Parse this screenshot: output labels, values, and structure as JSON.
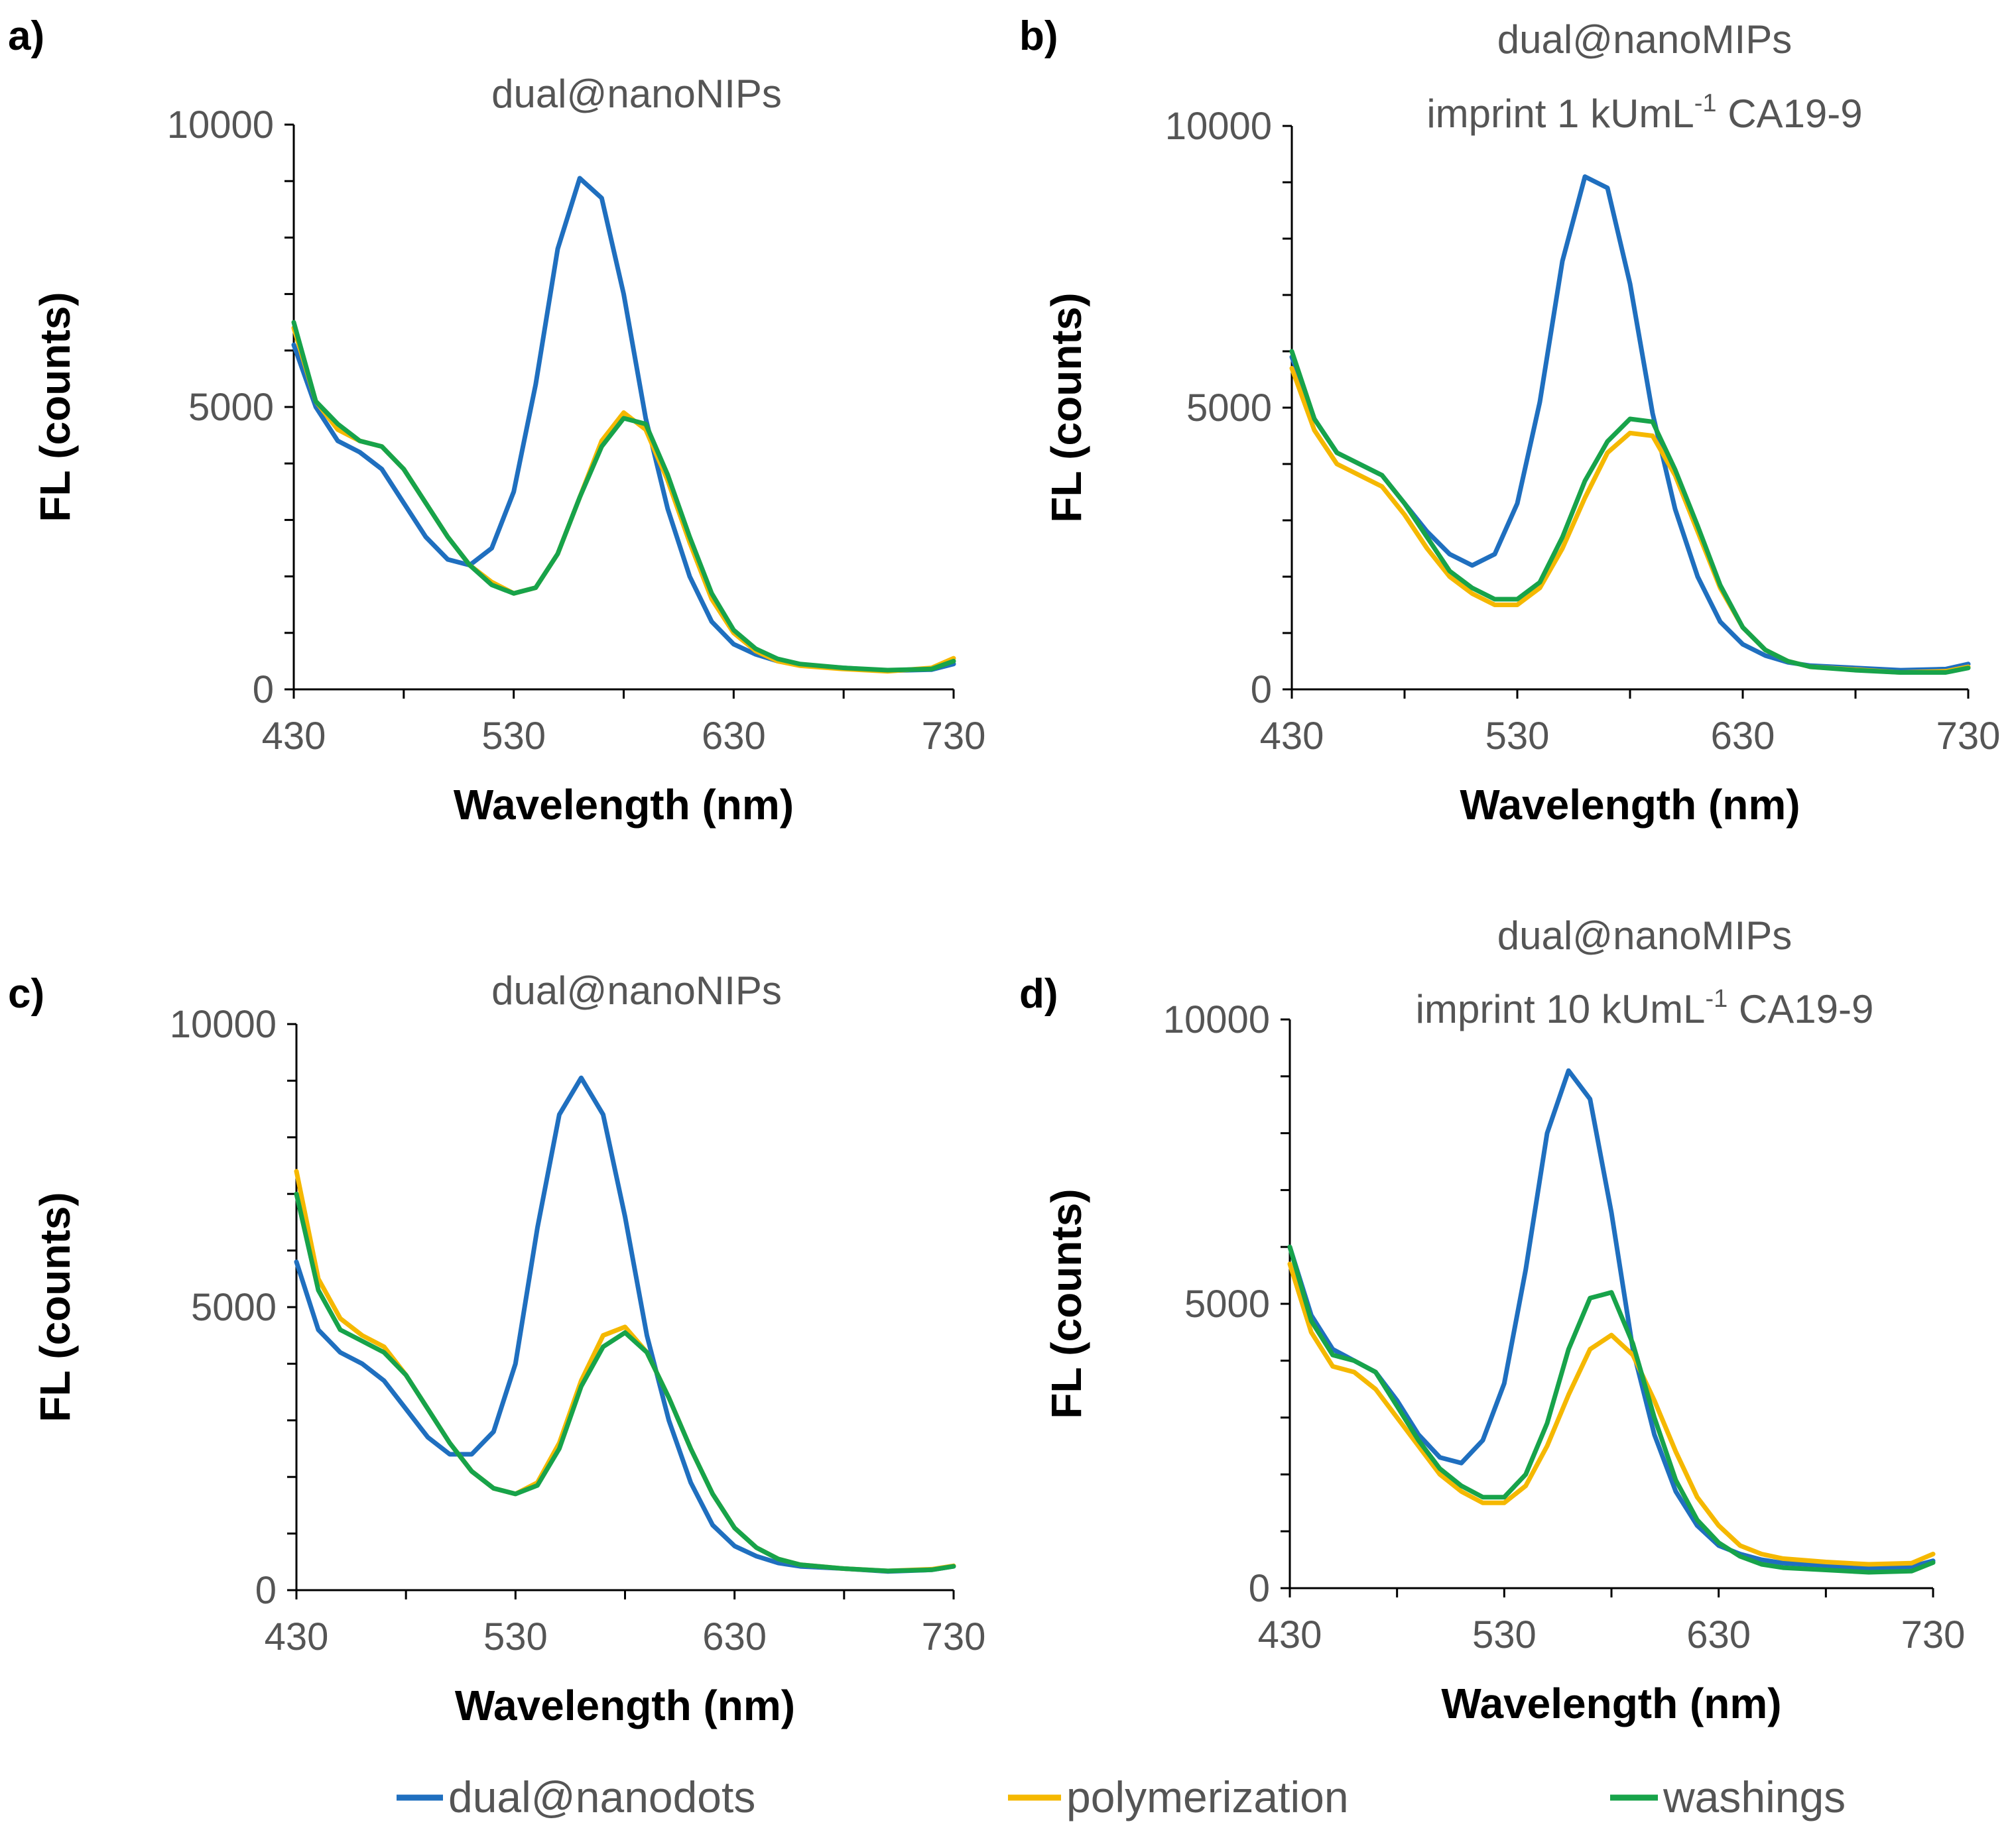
{
  "colors": {
    "dual_nanodots": "#1f6fbf",
    "polymerization": "#f5b800",
    "washings": "#17a34a",
    "axis": "#000000",
    "tick_text": "#555555",
    "title_text": "#555555"
  },
  "legend": {
    "items": [
      {
        "key": "dual_nanodots",
        "label": "dual@nanodots"
      },
      {
        "key": "polymerization",
        "label": "polymerization"
      },
      {
        "key": "washings",
        "label": "washings"
      }
    ]
  },
  "chart_data": [
    {
      "panel": "a)",
      "type": "line",
      "title_lines": [
        "dual@nanoNIPs"
      ],
      "xlabel": "Wavelength (nm)",
      "ylabel": "FL (counts)",
      "xlim": [
        430,
        730
      ],
      "ylim": [
        0,
        10000
      ],
      "xticks": [
        "430",
        "530",
        "630",
        "730"
      ],
      "yticks": [
        "0",
        "5000",
        "10000"
      ],
      "x": [
        430,
        440,
        450,
        460,
        470,
        480,
        490,
        500,
        510,
        520,
        530,
        540,
        550,
        560,
        570,
        580,
        590,
        600,
        610,
        620,
        630,
        640,
        650,
        660,
        680,
        700,
        720,
        730
      ],
      "series": [
        {
          "name": "dual@nanodots",
          "key": "dual_nanodots",
          "values": [
            6100,
            5000,
            4400,
            4200,
            3900,
            3300,
            2700,
            2300,
            2200,
            2500,
            3500,
            5400,
            7800,
            9050,
            8700,
            7000,
            4800,
            3200,
            2000,
            1200,
            800,
            620,
            500,
            430,
            380,
            330,
            350,
            450
          ]
        },
        {
          "name": "polymerization",
          "key": "polymerization",
          "values": [
            6400,
            5100,
            4600,
            4400,
            4300,
            3900,
            3300,
            2700,
            2200,
            1900,
            1700,
            1800,
            2400,
            3400,
            4400,
            4900,
            4600,
            3700,
            2600,
            1600,
            1000,
            680,
            500,
            420,
            360,
            320,
            380,
            550
          ]
        },
        {
          "name": "washings",
          "key": "washings",
          "values": [
            6500,
            5100,
            4700,
            4400,
            4300,
            3900,
            3300,
            2700,
            2200,
            1850,
            1700,
            1800,
            2400,
            3400,
            4300,
            4800,
            4700,
            3800,
            2700,
            1700,
            1050,
            720,
            540,
            450,
            380,
            340,
            360,
            500
          ]
        }
      ]
    },
    {
      "panel": "b)",
      "type": "line",
      "title_lines": [
        "dual@nanoMIPs",
        "imprint 1 kUmL",
        "-1",
        " CA19-9"
      ],
      "xlabel": "Wavelength (nm)",
      "ylabel": "FL (counts)",
      "xlim": [
        430,
        730
      ],
      "ylim": [
        0,
        10000
      ],
      "xticks": [
        "430",
        "530",
        "630",
        "730"
      ],
      "yticks": [
        "0",
        "5000",
        "10000"
      ],
      "x": [
        430,
        440,
        450,
        460,
        470,
        480,
        490,
        500,
        510,
        520,
        530,
        540,
        550,
        560,
        570,
        580,
        590,
        600,
        610,
        620,
        630,
        640,
        650,
        660,
        680,
        700,
        720,
        730
      ],
      "series": [
        {
          "name": "dual@nanodots",
          "key": "dual_nanodots",
          "values": [
            5900,
            4800,
            4200,
            4000,
            3800,
            3300,
            2800,
            2400,
            2200,
            2400,
            3300,
            5100,
            7600,
            9100,
            8900,
            7200,
            4900,
            3200,
            2000,
            1200,
            800,
            600,
            480,
            420,
            380,
            340,
            360,
            450
          ]
        },
        {
          "name": "polymerization",
          "key": "polymerization",
          "values": [
            5700,
            4600,
            4000,
            3800,
            3600,
            3100,
            2500,
            2000,
            1700,
            1500,
            1500,
            1800,
            2500,
            3400,
            4200,
            4550,
            4500,
            3800,
            2800,
            1800,
            1100,
            700,
            500,
            400,
            350,
            300,
            320,
            400
          ]
        },
        {
          "name": "washings",
          "key": "washings",
          "values": [
            6000,
            4800,
            4200,
            4000,
            3800,
            3300,
            2700,
            2100,
            1800,
            1600,
            1600,
            1900,
            2700,
            3700,
            4400,
            4800,
            4750,
            3900,
            2900,
            1850,
            1100,
            700,
            500,
            400,
            340,
            300,
            300,
            380
          ]
        }
      ]
    },
    {
      "panel": "c)",
      "type": "line",
      "title_lines": [
        "dual@nanoNIPs"
      ],
      "xlabel": "Wavelength (nm)",
      "ylabel": "FL (counts)",
      "xlim": [
        430,
        730
      ],
      "ylim": [
        0,
        10000
      ],
      "xticks": [
        "430",
        "530",
        "630",
        "730"
      ],
      "yticks": [
        "0",
        "5000",
        "10000"
      ],
      "x": [
        430,
        440,
        450,
        460,
        470,
        480,
        490,
        500,
        510,
        520,
        530,
        540,
        550,
        560,
        570,
        580,
        590,
        600,
        610,
        620,
        630,
        640,
        650,
        660,
        680,
        700,
        720,
        730
      ],
      "series": [
        {
          "name": "dual@nanodots",
          "key": "dual_nanodots",
          "values": [
            5800,
            4600,
            4200,
            4000,
            3700,
            3200,
            2700,
            2400,
            2400,
            2800,
            4000,
            6400,
            8400,
            9050,
            8400,
            6600,
            4500,
            3000,
            1900,
            1150,
            780,
            600,
            480,
            420,
            380,
            330,
            360,
            420
          ]
        },
        {
          "name": "polymerization",
          "key": "polymerization",
          "values": [
            7400,
            5500,
            4800,
            4500,
            4300,
            3800,
            3200,
            2600,
            2100,
            1800,
            1700,
            1900,
            2600,
            3700,
            4500,
            4650,
            4200,
            3400,
            2500,
            1700,
            1100,
            750,
            550,
            450,
            380,
            340,
            370,
            430
          ]
        },
        {
          "name": "washings",
          "key": "washings",
          "values": [
            7000,
            5300,
            4600,
            4400,
            4200,
            3800,
            3200,
            2600,
            2100,
            1800,
            1700,
            1850,
            2500,
            3600,
            4300,
            4550,
            4200,
            3400,
            2500,
            1700,
            1100,
            750,
            550,
            450,
            380,
            340,
            360,
            420
          ]
        }
      ]
    },
    {
      "panel": "d)",
      "type": "line",
      "title_lines": [
        "dual@nanoMIPs",
        "imprint 10 kUmL",
        "-1",
        " CA19-9"
      ],
      "xlabel": "Wavelength (nm)",
      "ylabel": "FL (counts)",
      "xlim": [
        430,
        730
      ],
      "ylim": [
        0,
        10000
      ],
      "xticks": [
        "430",
        "530",
        "630",
        "730"
      ],
      "yticks": [
        "0",
        "5000",
        "10000"
      ],
      "x": [
        430,
        440,
        450,
        460,
        470,
        480,
        490,
        500,
        510,
        520,
        530,
        540,
        550,
        560,
        570,
        580,
        590,
        600,
        610,
        620,
        630,
        640,
        650,
        660,
        680,
        700,
        720,
        730
      ],
      "series": [
        {
          "name": "dual@nanodots",
          "key": "dual_nanodots",
          "values": [
            6000,
            4800,
            4200,
            4000,
            3800,
            3300,
            2700,
            2300,
            2200,
            2600,
            3600,
            5600,
            8000,
            9100,
            8600,
            6600,
            4200,
            2700,
            1700,
            1100,
            750,
            600,
            500,
            440,
            400,
            350,
            380,
            480
          ]
        },
        {
          "name": "polymerization",
          "key": "polymerization",
          "values": [
            5700,
            4500,
            3900,
            3800,
            3500,
            3000,
            2500,
            2000,
            1700,
            1500,
            1500,
            1800,
            2500,
            3400,
            4200,
            4450,
            4100,
            3300,
            2400,
            1600,
            1100,
            750,
            600,
            520,
            460,
            420,
            440,
            600
          ]
        },
        {
          "name": "washings",
          "key": "washings",
          "values": [
            6000,
            4700,
            4100,
            4000,
            3800,
            3200,
            2600,
            2100,
            1800,
            1600,
            1600,
            2000,
            2900,
            4200,
            5100,
            5200,
            4300,
            3000,
            1900,
            1200,
            800,
            560,
            420,
            360,
            320,
            280,
            300,
            450
          ]
        }
      ]
    }
  ]
}
